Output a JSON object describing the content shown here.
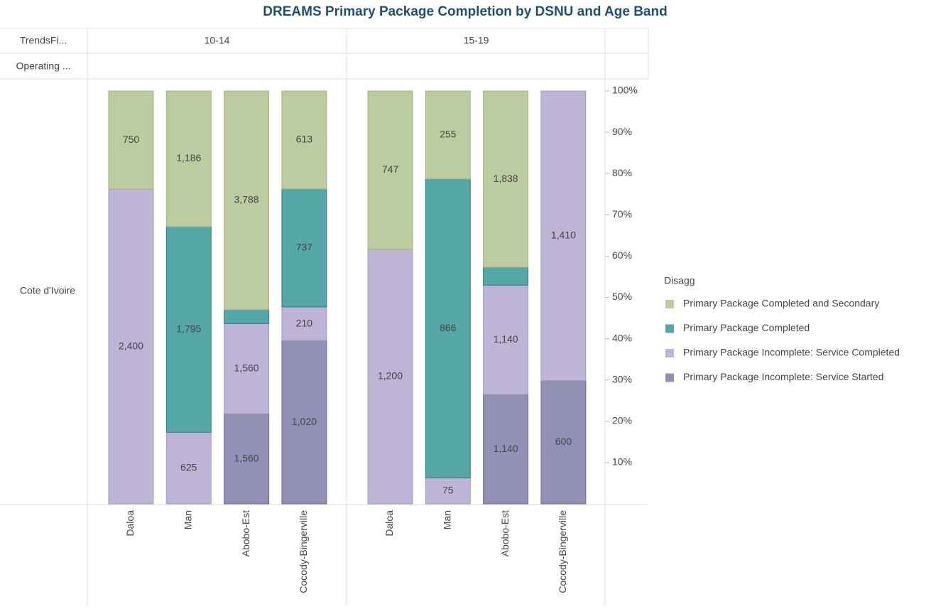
{
  "chart_data": {
    "type": "bar",
    "stacked": "percent",
    "title": "DREAMS Primary Package Completion by DSNU and Age Band",
    "row_headers": [
      "TrendsFi...",
      "Operating ..."
    ],
    "row_label": "Cote d'Ivoire",
    "legend_title": "Disagg",
    "panels": [
      {
        "label": "10-14",
        "categories": [
          "Daloa",
          "Man",
          "Abobo-Est",
          "Cocody-Bingerville"
        ]
      },
      {
        "label": "15-19",
        "categories": [
          "Daloa",
          "Man",
          "Abobo-Est",
          "Cocody-Bingerville"
        ]
      }
    ],
    "series": [
      {
        "name": "Primary Package Completed and Secondary",
        "color": "#bccba0",
        "stroke": "#9fb57f",
        "values": [
          [
            750,
            1186,
            3788,
            613
          ],
          [
            747,
            255,
            1838,
            null
          ]
        ],
        "value_labels": [
          [
            "750",
            "1,186",
            "3,788",
            "613"
          ],
          [
            "747",
            "255",
            "1,838",
            null
          ]
        ]
      },
      {
        "name": "Primary Package Completed",
        "color": "#55a6a6",
        "stroke": "#2f7f7f",
        "values": [
          [
            null,
            1795,
            240,
            737
          ],
          [
            null,
            866,
            186,
            null
          ]
        ],
        "value_labels": [
          [
            null,
            "1,795",
            null,
            "737"
          ],
          [
            null,
            "866",
            null,
            null
          ]
        ]
      },
      {
        "name": "Primary Package Incomplete: Service Completed",
        "color": "#bdb4d6",
        "stroke": "#a49bc4",
        "values": [
          [
            2400,
            625,
            1560,
            210
          ],
          [
            1200,
            75,
            1140,
            1410
          ]
        ],
        "value_labels": [
          [
            "2,400",
            "625",
            "1,560",
            "210"
          ],
          [
            "1,200",
            "75",
            "1,140",
            "1,410"
          ]
        ]
      },
      {
        "name": "Primary Package Incomplete: Service Started",
        "color": "#9291b5",
        "stroke": "#6e6c96",
        "values": [
          [
            null,
            null,
            1560,
            1020
          ],
          [
            null,
            null,
            1140,
            600
          ]
        ],
        "value_labels": [
          [
            null,
            null,
            "1,560",
            "1,020"
          ],
          [
            null,
            null,
            "1,140",
            "600"
          ]
        ]
      }
    ],
    "ylim": [
      0,
      100
    ],
    "yticks": [
      {
        "value": 10,
        "label": "10%"
      },
      {
        "value": 20,
        "label": "20%"
      },
      {
        "value": 30,
        "label": "30%"
      },
      {
        "value": 40,
        "label": "40%"
      },
      {
        "value": 50,
        "label": "50%"
      },
      {
        "value": 60,
        "label": "60%"
      },
      {
        "value": 70,
        "label": "70%"
      },
      {
        "value": 80,
        "label": "80%"
      },
      {
        "value": 90,
        "label": "90%"
      },
      {
        "value": 100,
        "label": "100%"
      }
    ],
    "legend_position": "right"
  }
}
